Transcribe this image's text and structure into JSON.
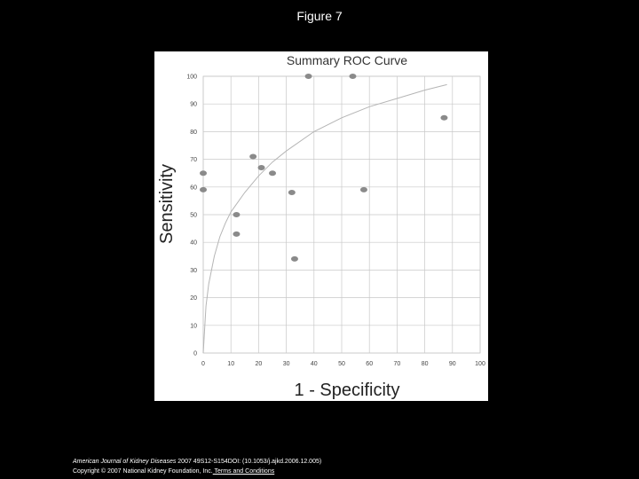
{
  "figure_title": "Figure 7",
  "chart_data": {
    "type": "scatter",
    "title": "Summary ROC Curve",
    "xlabel": "1 - Specificity",
    "ylabel": "Sensitivity",
    "xlim": [
      0,
      100
    ],
    "ylim": [
      0,
      100
    ],
    "xticks": [
      "0",
      "10",
      "20",
      "30",
      "40",
      "50",
      "60",
      "70",
      "80",
      "90",
      "100"
    ],
    "yticks": [
      "0",
      "10",
      "20",
      "30",
      "40",
      "50",
      "60",
      "70",
      "80",
      "90",
      "100"
    ],
    "grid": true,
    "colors": {
      "points": "#8a8a8a",
      "curve": "#b5b5b5",
      "grid": "#c8c8c8"
    },
    "points": [
      {
        "x": 0,
        "y": 65
      },
      {
        "x": 0,
        "y": 59
      },
      {
        "x": 12,
        "y": 50
      },
      {
        "x": 12,
        "y": 43
      },
      {
        "x": 18,
        "y": 71
      },
      {
        "x": 21,
        "y": 67
      },
      {
        "x": 25,
        "y": 65
      },
      {
        "x": 32,
        "y": 58
      },
      {
        "x": 33,
        "y": 34
      },
      {
        "x": 38,
        "y": 100
      },
      {
        "x": 54,
        "y": 100
      },
      {
        "x": 58,
        "y": 59
      },
      {
        "x": 87,
        "y": 85
      }
    ],
    "curve": {
      "name": "Summary ROC curve",
      "x": [
        0,
        1,
        2,
        4,
        6,
        8,
        10,
        15,
        20,
        25,
        30,
        40,
        50,
        60,
        70,
        80,
        88
      ],
      "y": [
        0,
        17,
        25,
        35,
        42,
        47,
        51,
        58,
        64,
        69,
        73,
        80,
        85,
        89,
        92,
        95,
        97
      ]
    }
  },
  "citation": {
    "journal": "American Journal of Kidney Diseases",
    "details": " 2007 49S12-S154DOI: (10.1053/j.ajkd.2006.12.005)",
    "copyright": "Copyright © 2007 National Kidney Foundation, Inc.",
    "terms_link": " Terms and Conditions"
  }
}
